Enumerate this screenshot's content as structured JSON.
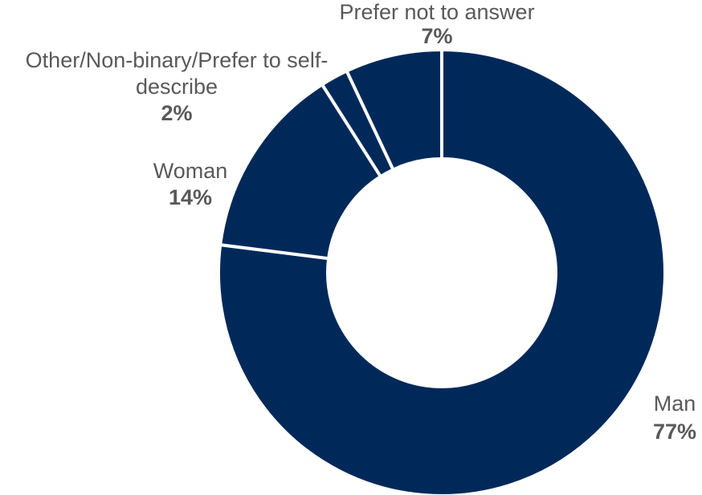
{
  "chart_data": {
    "type": "pie",
    "style": "donut",
    "slice_color": "#00295A",
    "separator_color": "#FFFFFF",
    "label_color": "#595959",
    "slices": [
      {
        "label_lines": [
          "Man"
        ],
        "pct_label": "77%",
        "value": 77
      },
      {
        "label_lines": [
          "Woman"
        ],
        "pct_label": "14%",
        "value": 14
      },
      {
        "label_lines": [
          "Other/Non-binary/Prefer to self-",
          "describe"
        ],
        "pct_label": "2%",
        "value": 2
      },
      {
        "label_lines": [
          "Prefer not to answer"
        ],
        "pct_label": "7%",
        "value": 7
      }
    ]
  }
}
